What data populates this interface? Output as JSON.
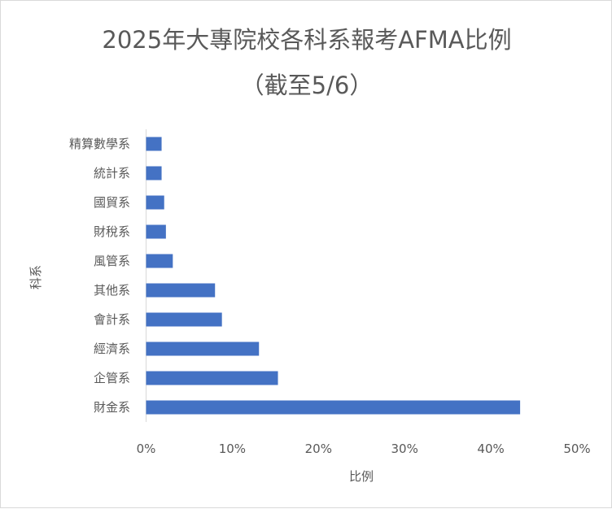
{
  "chart_data": {
    "type": "bar",
    "orientation": "horizontal",
    "title": "2025年大專院校各科系報考AFMA比例",
    "subtitle": "（截至5/6）",
    "xlabel": "比例",
    "ylabel": "科系",
    "categories": [
      "精算數學系",
      "統計系",
      "國貿系",
      "財稅系",
      "風管系",
      "其他系",
      "會計系",
      "經濟系",
      "企管系",
      "財金系"
    ],
    "values": [
      1.8,
      1.8,
      2.1,
      2.3,
      3.1,
      8.0,
      8.8,
      13.1,
      15.3,
      43.4
    ],
    "xlim": [
      0,
      50
    ],
    "xticks": [
      "0%",
      "10%",
      "20%",
      "30%",
      "40%",
      "50%"
    ],
    "grid": false,
    "legend": "none",
    "bar_color": "#4472C4"
  }
}
